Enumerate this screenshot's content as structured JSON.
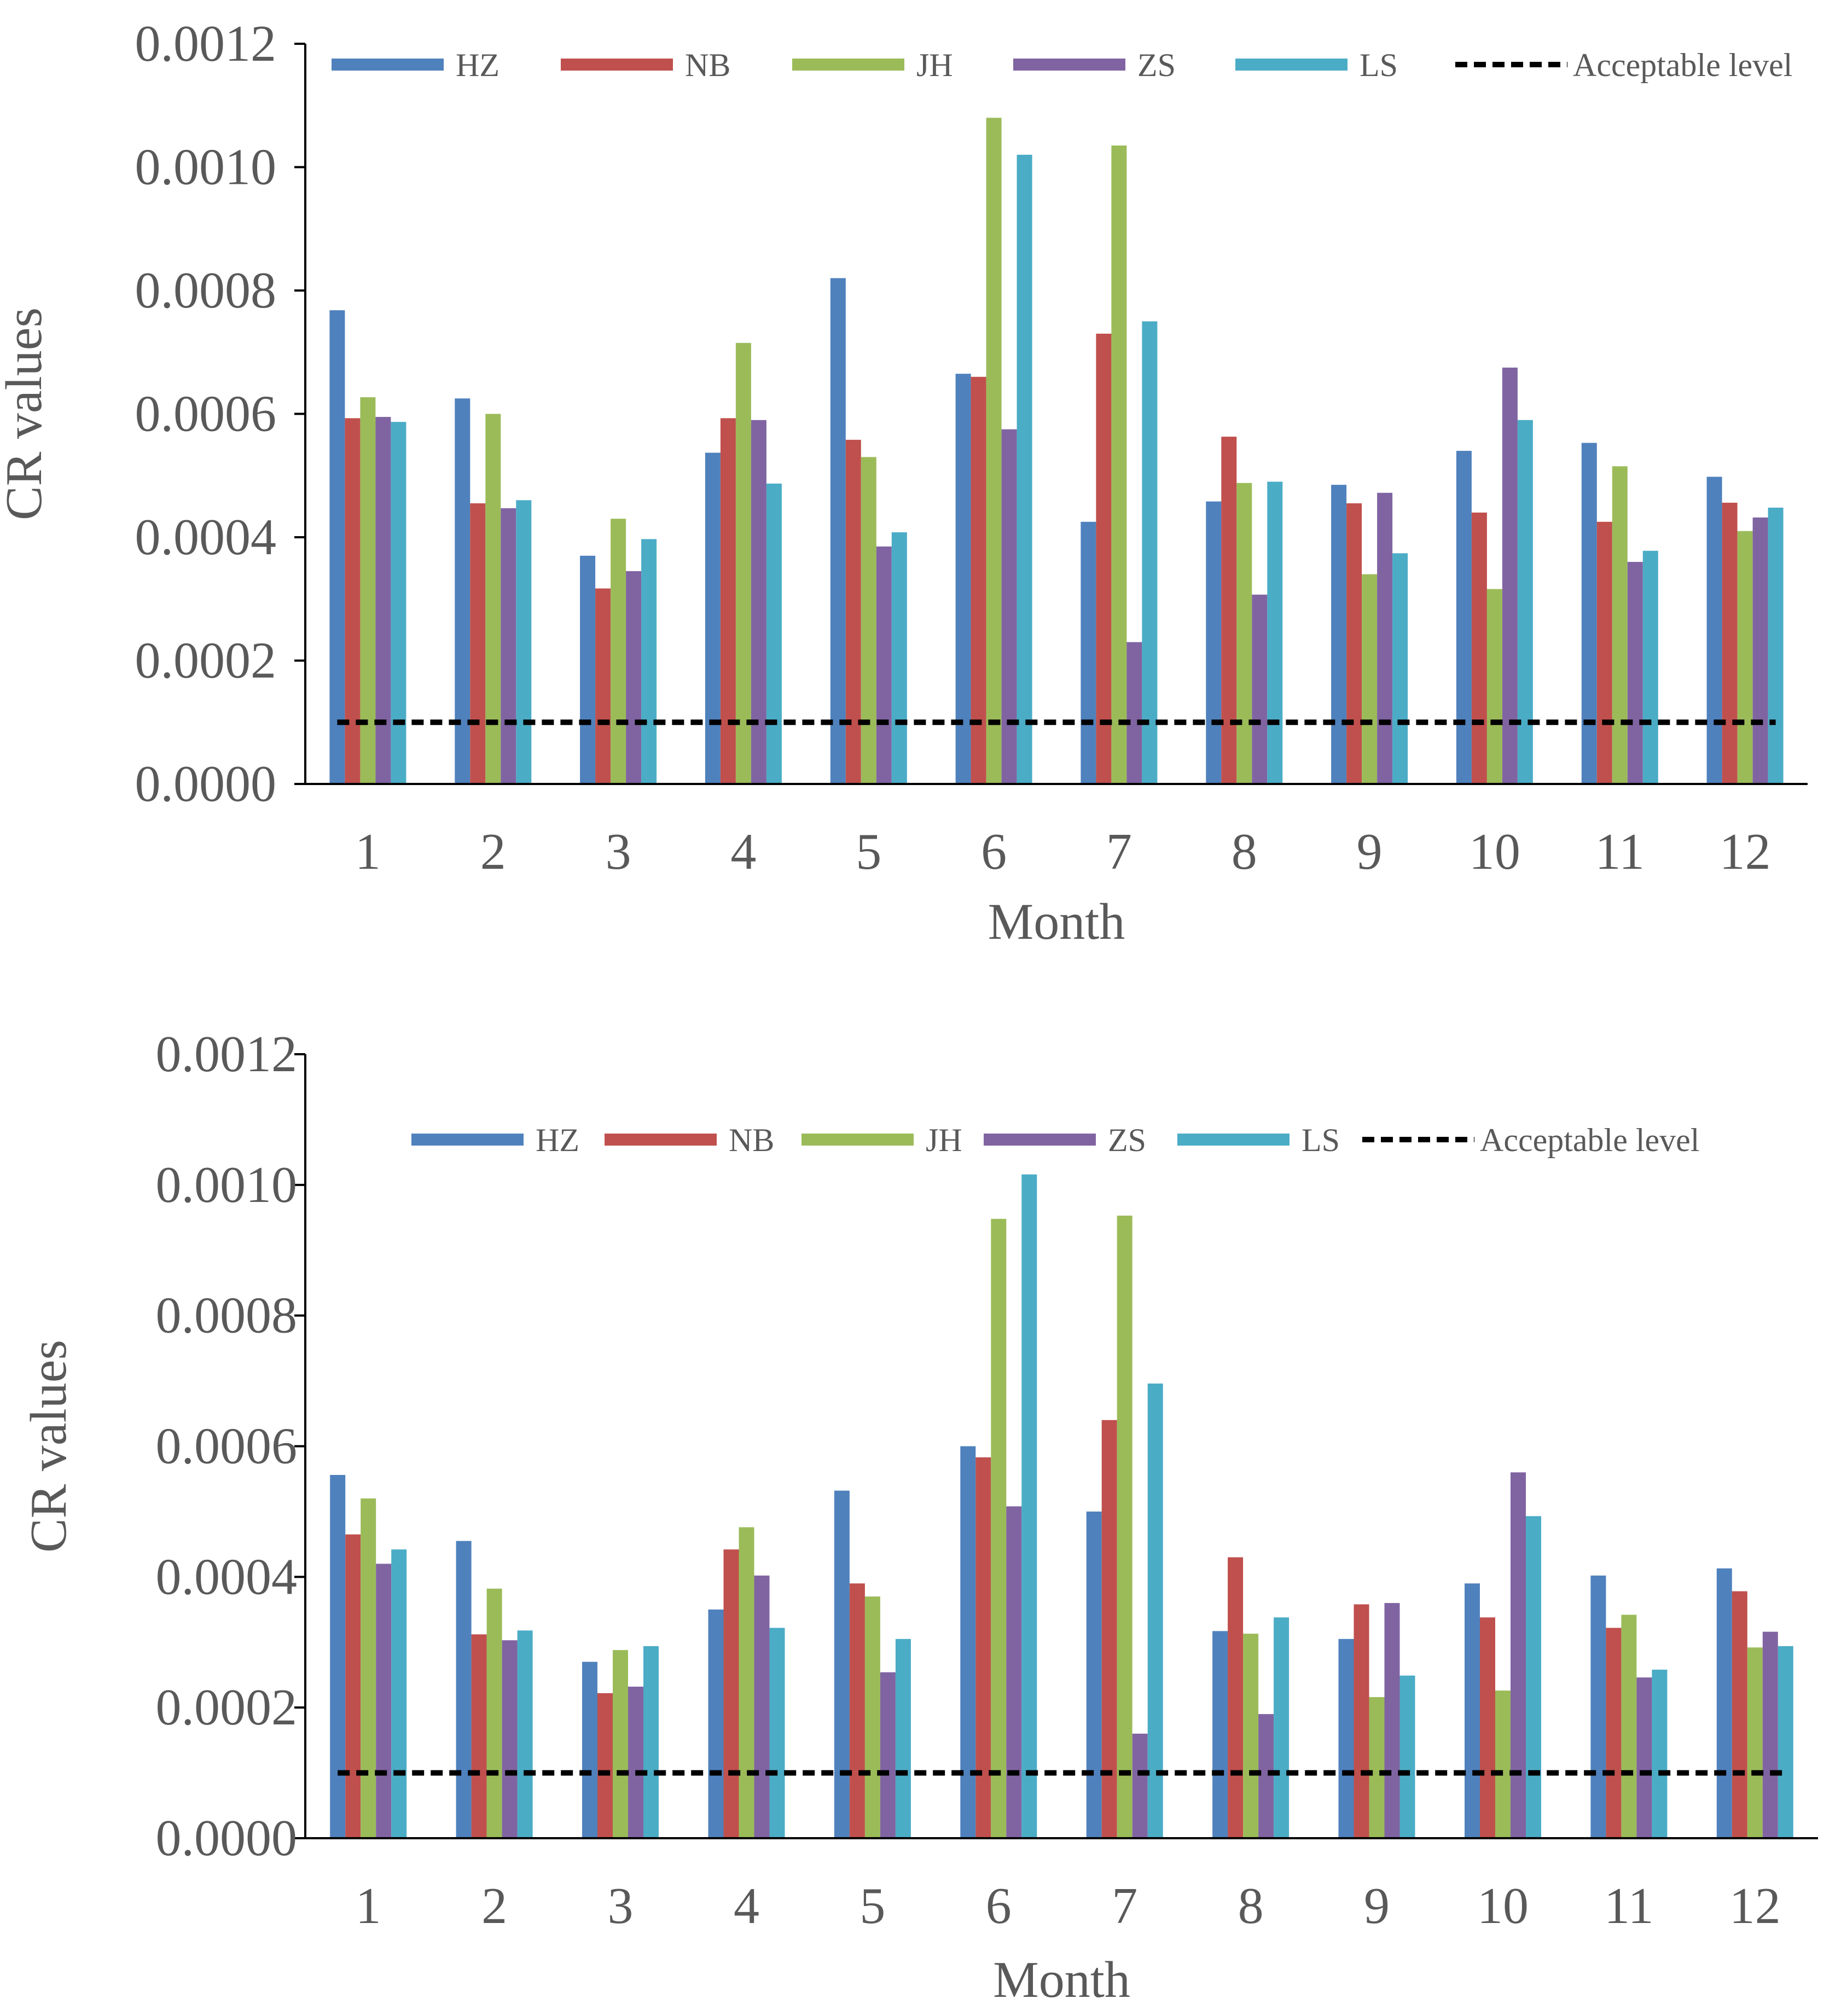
{
  "chart_data": [
    {
      "type": "bar",
      "title": "",
      "xlabel": "Month",
      "ylabel": "CR values",
      "ylim": [
        0,
        0.0012
      ],
      "yticks": [
        "0.0000",
        "0.0002",
        "0.0004",
        "0.0006",
        "0.0008",
        "0.0010",
        "0.0012"
      ],
      "grid": false,
      "legend_position": "top",
      "categories": [
        "1",
        "2",
        "3",
        "4",
        "5",
        "6",
        "7",
        "8",
        "9",
        "10",
        "11",
        "12"
      ],
      "series": [
        {
          "name": "HZ",
          "color": "#4F81BD",
          "values": [
            0.000768,
            0.000625,
            0.00037,
            0.000537,
            0.00082,
            0.000665,
            0.000425,
            0.000458,
            0.000485,
            0.00054,
            0.000553,
            0.000498
          ]
        },
        {
          "name": "NB",
          "color": "#C0504D",
          "values": [
            0.000593,
            0.000455,
            0.000317,
            0.000593,
            0.000558,
            0.00066,
            0.00073,
            0.000563,
            0.000455,
            0.00044,
            0.000425,
            0.000456
          ]
        },
        {
          "name": "JH",
          "color": "#9BBB59",
          "values": [
            0.000627,
            0.0006,
            0.00043,
            0.000715,
            0.00053,
            0.00108,
            0.001035,
            0.000488,
            0.00034,
            0.000316,
            0.000515,
            0.00041
          ]
        },
        {
          "name": "ZS",
          "color": "#8064A2",
          "values": [
            0.000595,
            0.000447,
            0.000345,
            0.00059,
            0.000385,
            0.000575,
            0.00023,
            0.000307,
            0.000472,
            0.000675,
            0.00036,
            0.000432
          ]
        },
        {
          "name": "LS",
          "color": "#4BACC6",
          "values": [
            0.000587,
            0.00046,
            0.000397,
            0.000487,
            0.000408,
            0.00102,
            0.00075,
            0.00049,
            0.000374,
            0.00059,
            0.000378,
            0.000448
          ]
        }
      ],
      "reference_line": {
        "name": "Acceptable level",
        "value": 0.0001,
        "color": "#000000"
      }
    },
    {
      "type": "bar",
      "title": "",
      "xlabel": "Month",
      "ylabel": "CR values",
      "ylim": [
        0,
        0.0012
      ],
      "yticks": [
        "0.0000",
        "0.0002",
        "0.0004",
        "0.0006",
        "0.0008",
        "0.0010",
        "0.0012"
      ],
      "grid": false,
      "legend_position": "top",
      "categories": [
        "1",
        "2",
        "3",
        "4",
        "5",
        "6",
        "7",
        "8",
        "9",
        "10",
        "11",
        "12"
      ],
      "series": [
        {
          "name": "HZ",
          "color": "#4F81BD",
          "values": [
            0.000556,
            0.000455,
            0.00027,
            0.00035,
            0.000532,
            0.0006,
            0.0005,
            0.000317,
            0.000305,
            0.00039,
            0.000402,
            0.000413
          ]
        },
        {
          "name": "NB",
          "color": "#C0504D",
          "values": [
            0.000465,
            0.000312,
            0.000222,
            0.000442,
            0.00039,
            0.000583,
            0.00064,
            0.00043,
            0.000358,
            0.000338,
            0.000322,
            0.000378
          ]
        },
        {
          "name": "JH",
          "color": "#9BBB59",
          "values": [
            0.00052,
            0.000382,
            0.000288,
            0.000476,
            0.00037,
            0.000948,
            0.000953,
            0.000313,
            0.000216,
            0.000226,
            0.000342,
            0.000292
          ]
        },
        {
          "name": "ZS",
          "color": "#8064A2",
          "values": [
            0.00042,
            0.000303,
            0.000232,
            0.000402,
            0.000254,
            0.000508,
            0.00016,
            0.00019,
            0.00036,
            0.00056,
            0.000246,
            0.000316
          ]
        },
        {
          "name": "LS",
          "color": "#4BACC6",
          "values": [
            0.000442,
            0.000318,
            0.000294,
            0.000322,
            0.000305,
            0.001016,
            0.000696,
            0.000338,
            0.000249,
            0.000493,
            0.000258,
            0.000294
          ]
        }
      ],
      "reference_line": {
        "name": "Acceptable level",
        "value": 0.0001,
        "color": "#000000"
      }
    }
  ]
}
